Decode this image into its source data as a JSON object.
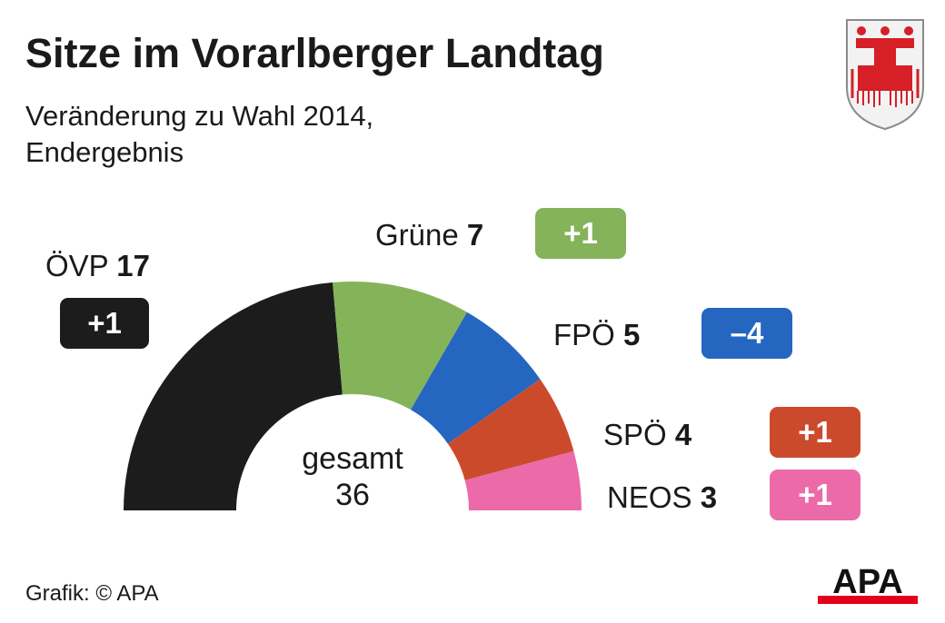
{
  "header": {
    "title": "Sitze im Vorarlberger Landtag",
    "subtitle_line1": "Veränderung zu Wahl 2014,",
    "subtitle_line2": "Endergebnis"
  },
  "center": {
    "label": "gesamt",
    "total": "36"
  },
  "footer": {
    "source": "Grafik: © APA",
    "logo_text": "APA"
  },
  "icons": {
    "crest": "vorarlberg-coat-of-arms",
    "logo": "apa-logo"
  },
  "colors": {
    "ovp": "#1c1c1c",
    "grune": "#84b35a",
    "fpo": "#2566c0",
    "spo": "#cc4a2c",
    "neos": "#ec6aa7",
    "logo_bar": "#e2001a"
  },
  "chart_data": {
    "type": "pie",
    "variant": "semicircle",
    "title": "Sitze im Vorarlberger Landtag",
    "subtitle": "Veränderung zu Wahl 2014, Endergebnis",
    "total": 36,
    "categories": [
      "ÖVP",
      "Grüne",
      "FPÖ",
      "SPÖ",
      "NEOS"
    ],
    "values": [
      17,
      7,
      5,
      4,
      3
    ],
    "changes": [
      "+1",
      "+1",
      "–4",
      "+1",
      "+1"
    ],
    "colors": [
      "#1c1c1c",
      "#84b35a",
      "#2566c0",
      "#cc4a2c",
      "#ec6aa7"
    ]
  }
}
